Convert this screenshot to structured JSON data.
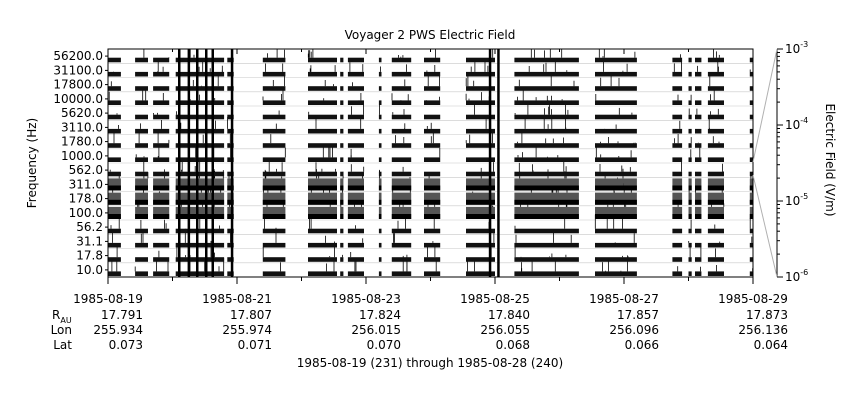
{
  "chart_data": {
    "type": "heatmap",
    "title": "Voyager 2 PWS Electric Field",
    "ylabel": "Frequency (Hz)",
    "colorbar_label": "Electric Field (V/m)",
    "y_scale": "channels",
    "channels": [
      "10.0",
      "17.8",
      "31.1",
      "56.2",
      "100.0",
      "178.0",
      "311.0",
      "562.0",
      "1000.0",
      "1780.0",
      "3110.0",
      "5620.0",
      "10000.0",
      "17800.0",
      "31100.0",
      "56200.0"
    ],
    "colorbar": {
      "scale": "log",
      "range": [
        "1e-6",
        "1e-3"
      ],
      "ticks": [
        "10",
        "10",
        "10",
        "10"
      ],
      "tick_exponents": [
        "-6",
        "-5",
        "-4",
        "-3"
      ]
    },
    "x_ticks": [
      {
        "date": "1985-08-19",
        "rau": "17.791",
        "lon": "255.934",
        "lat": "0.073"
      },
      {
        "date": "1985-08-21",
        "rau": "17.807",
        "lon": "255.974",
        "lat": "0.071"
      },
      {
        "date": "1985-08-23",
        "rau": "17.824",
        "lon": "256.015",
        "lat": "0.070"
      },
      {
        "date": "1985-08-25",
        "rau": "17.840",
        "lon": "256.055",
        "lat": "0.068"
      },
      {
        "date": "1985-08-27",
        "rau": "17.857",
        "lon": "256.096",
        "lat": "0.066"
      },
      {
        "date": "1985-08-29",
        "rau": "17.873",
        "lon": "256.136",
        "lat": "0.064"
      }
    ],
    "x_range": [
      "1985-08-19",
      "1985-08-29"
    ],
    "row_labels": {
      "rau_prefix": "R",
      "rau_subscript": "AU",
      "lon": "Lon",
      "lat": "Lat"
    },
    "xlabel": "1985-08-19 (231) through 1985-08-28 (240)",
    "data_intervals": [
      [
        "1985-08-19",
        0.0,
        0.2
      ],
      [
        "1985-08-19",
        0.42,
        0.62
      ],
      [
        "1985-08-19",
        0.7,
        0.95
      ],
      [
        "1985-08-20",
        0.05,
        0.8
      ],
      [
        "1985-08-20",
        0.85,
        0.95
      ],
      [
        "1985-08-21",
        0.4,
        0.75
      ],
      [
        "1985-08-22",
        0.1,
        0.55
      ],
      [
        "1985-08-22",
        0.6,
        0.65
      ],
      [
        "1985-08-22",
        0.72,
        0.97
      ],
      [
        "1985-08-23",
        0.2,
        0.24
      ],
      [
        "1985-08-23",
        0.4,
        0.7
      ],
      [
        "1985-08-23",
        0.9,
        1.0
      ],
      [
        "1985-08-24",
        0.0,
        0.15
      ],
      [
        "1985-08-24",
        0.55,
        1.0
      ],
      [
        "1985-08-25",
        0.3,
        1.0
      ],
      [
        "1985-08-26",
        0.0,
        0.3
      ],
      [
        "1985-08-26",
        0.55,
        1.0
      ],
      [
        "1985-08-27",
        0.0,
        0.2
      ],
      [
        "1985-08-27",
        0.75,
        0.9
      ],
      [
        "1985-08-28",
        0.0,
        0.05
      ],
      [
        "1985-08-28",
        0.1,
        0.2
      ],
      [
        "1985-08-28",
        0.3,
        0.55
      ],
      [
        "1985-08-28",
        0.95,
        1.0
      ]
    ]
  }
}
